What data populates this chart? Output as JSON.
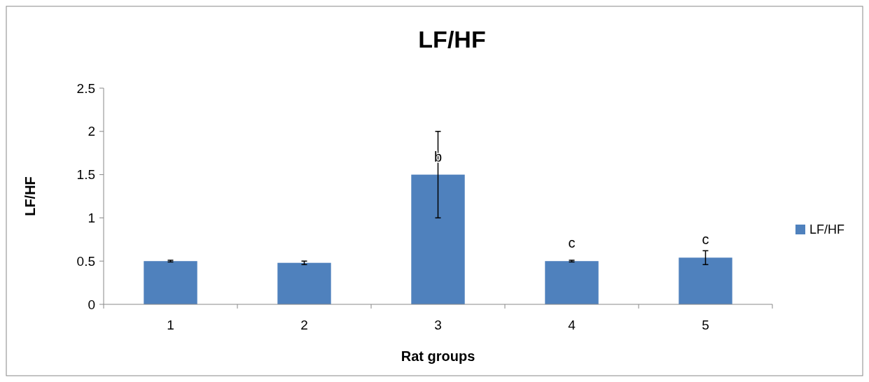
{
  "chart_data": {
    "type": "bar",
    "title": "LF/HF",
    "xlabel": "Rat groups",
    "ylabel": "LF/HF",
    "categories": [
      "1",
      "2",
      "3",
      "4",
      "5"
    ],
    "series": [
      {
        "name": "LF/HF",
        "color": "#4f81bd",
        "values": [
          0.5,
          0.48,
          1.5,
          0.5,
          0.54
        ],
        "errors": [
          0.01,
          0.02,
          0.5,
          0.01,
          0.08
        ]
      }
    ],
    "ylim": [
      0,
      2.5
    ],
    "yticks": [
      0,
      0.5,
      1,
      1.5,
      2,
      2.5
    ],
    "grid": false,
    "legend": "right",
    "annotations": [
      {
        "text": "b",
        "x": "3",
        "y": 1.5
      },
      {
        "text": "c",
        "x": "4",
        "y": 0.5
      },
      {
        "text": "c",
        "x": "5",
        "y": 0.54
      }
    ]
  }
}
